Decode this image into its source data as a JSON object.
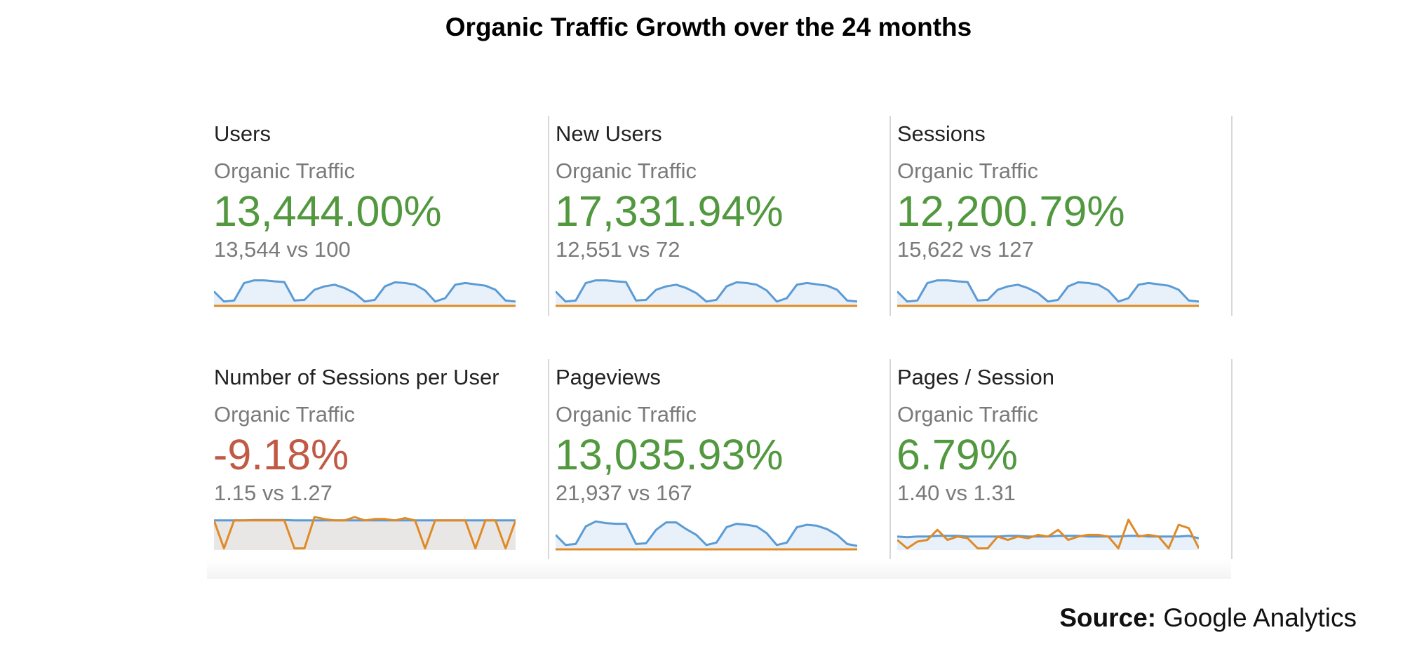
{
  "title": "Organic Traffic Growth over the 24 months",
  "source": {
    "label": "Source:",
    "text": "Google Analytics"
  },
  "colors": {
    "positive": "#52983f",
    "negative": "#c05a44",
    "current_series": "#5b9bd5",
    "current_fill": "#e8f1fa",
    "previous_series": "#e08a26",
    "negative_fill": "#e9e7e6"
  },
  "cards": [
    {
      "metric": "Users",
      "segment": "Organic Traffic",
      "change": "13,444.00%",
      "comparison": "13,544 vs 100",
      "trend": "positive"
    },
    {
      "metric": "New Users",
      "segment": "Organic Traffic",
      "change": "17,331.94%",
      "comparison": "12,551 vs 72",
      "trend": "positive"
    },
    {
      "metric": "Sessions",
      "segment": "Organic Traffic",
      "change": "12,200.79%",
      "comparison": "15,622 vs 127",
      "trend": "positive"
    },
    {
      "metric": "Number of Sessions per User",
      "segment": "Organic Traffic",
      "change": "-9.18%",
      "comparison": "1.15 vs 1.27",
      "trend": "negative"
    },
    {
      "metric": "Pageviews",
      "segment": "Organic Traffic",
      "change": "13,035.93%",
      "comparison": "21,937 vs 167",
      "trend": "positive"
    },
    {
      "metric": "Pages / Session",
      "segment": "Organic Traffic",
      "change": "6.79%",
      "comparison": "1.40 vs 1.31",
      "trend": "positive"
    }
  ],
  "chart_data": [
    {
      "type": "line",
      "metric": "Users",
      "ylim": [
        0,
        1.0
      ],
      "series": [
        {
          "values": [
            0.45,
            0.15,
            0.18,
            0.7,
            0.78,
            0.78,
            0.75,
            0.73,
            0.18,
            0.2,
            0.5,
            0.6,
            0.65,
            0.55,
            0.4,
            0.15,
            0.2,
            0.6,
            0.72,
            0.7,
            0.65,
            0.48,
            0.15,
            0.25,
            0.65,
            0.7,
            0.66,
            0.62,
            0.5,
            0.18,
            0.15
          ]
        },
        {
          "values": [
            0.02,
            0.02,
            0.02,
            0.02,
            0.02,
            0.02,
            0.02,
            0.02,
            0.02,
            0.02,
            0.02,
            0.02,
            0.02,
            0.02,
            0.02,
            0.02,
            0.02,
            0.02,
            0.02,
            0.02,
            0.02,
            0.02,
            0.02,
            0.02,
            0.02,
            0.02,
            0.02,
            0.02,
            0.02,
            0.02,
            0.02
          ]
        }
      ]
    },
    {
      "type": "line",
      "metric": "New Users",
      "ylim": [
        0,
        1.0
      ],
      "series": [
        {
          "values": [
            0.45,
            0.15,
            0.18,
            0.7,
            0.78,
            0.78,
            0.75,
            0.73,
            0.18,
            0.2,
            0.5,
            0.6,
            0.65,
            0.55,
            0.4,
            0.15,
            0.2,
            0.6,
            0.72,
            0.7,
            0.65,
            0.48,
            0.15,
            0.25,
            0.65,
            0.7,
            0.66,
            0.62,
            0.5,
            0.18,
            0.15
          ]
        },
        {
          "values": [
            0.02,
            0.02,
            0.02,
            0.02,
            0.02,
            0.02,
            0.02,
            0.02,
            0.02,
            0.02,
            0.02,
            0.02,
            0.02,
            0.02,
            0.02,
            0.02,
            0.02,
            0.02,
            0.02,
            0.02,
            0.02,
            0.02,
            0.02,
            0.02,
            0.02,
            0.02,
            0.02,
            0.02,
            0.02,
            0.02,
            0.02
          ]
        }
      ]
    },
    {
      "type": "line",
      "metric": "Sessions",
      "ylim": [
        0,
        1.0
      ],
      "series": [
        {
          "values": [
            0.45,
            0.15,
            0.18,
            0.7,
            0.78,
            0.78,
            0.75,
            0.73,
            0.18,
            0.2,
            0.5,
            0.6,
            0.65,
            0.55,
            0.4,
            0.15,
            0.2,
            0.6,
            0.72,
            0.7,
            0.65,
            0.48,
            0.15,
            0.25,
            0.65,
            0.7,
            0.66,
            0.62,
            0.5,
            0.18,
            0.15
          ]
        },
        {
          "values": [
            0.02,
            0.02,
            0.02,
            0.02,
            0.02,
            0.02,
            0.02,
            0.02,
            0.02,
            0.02,
            0.02,
            0.02,
            0.02,
            0.02,
            0.02,
            0.02,
            0.02,
            0.02,
            0.02,
            0.02,
            0.02,
            0.02,
            0.02,
            0.02,
            0.02,
            0.02,
            0.02,
            0.02,
            0.02,
            0.02,
            0.02
          ]
        }
      ]
    },
    {
      "type": "line",
      "metric": "Number of Sessions per User",
      "ylim": [
        0,
        1.0
      ],
      "series": [
        {
          "values": [
            0.88,
            0.88,
            0.88,
            0.88,
            0.89,
            0.89,
            0.89,
            0.89,
            0.88,
            0.88,
            0.88,
            0.88,
            0.88,
            0.88,
            0.88,
            0.88,
            0.88,
            0.88,
            0.88,
            0.88,
            0.88,
            0.88,
            0.88,
            0.88,
            0.88,
            0.88,
            0.88,
            0.88,
            0.88,
            0.88,
            0.88
          ]
        },
        {
          "values": [
            0.88,
            0.05,
            0.88,
            0.88,
            0.88,
            0.88,
            0.88,
            0.88,
            0.05,
            0.05,
            0.98,
            0.92,
            0.88,
            0.88,
            0.98,
            0.88,
            0.92,
            0.92,
            0.88,
            0.95,
            0.88,
            0.05,
            0.88,
            0.88,
            0.88,
            0.88,
            0.05,
            0.88,
            0.88,
            0.05,
            0.88
          ]
        }
      ]
    },
    {
      "type": "line",
      "metric": "Pageviews",
      "ylim": [
        0,
        1.0
      ],
      "series": [
        {
          "values": [
            0.45,
            0.15,
            0.18,
            0.7,
            0.85,
            0.8,
            0.78,
            0.78,
            0.18,
            0.2,
            0.6,
            0.82,
            0.82,
            0.62,
            0.45,
            0.15,
            0.22,
            0.68,
            0.78,
            0.75,
            0.7,
            0.5,
            0.15,
            0.22,
            0.68,
            0.75,
            0.72,
            0.62,
            0.45,
            0.18,
            0.12
          ]
        },
        {
          "values": [
            0.02,
            0.02,
            0.02,
            0.02,
            0.02,
            0.02,
            0.02,
            0.02,
            0.02,
            0.02,
            0.02,
            0.02,
            0.02,
            0.02,
            0.02,
            0.02,
            0.02,
            0.02,
            0.02,
            0.02,
            0.02,
            0.02,
            0.02,
            0.02,
            0.02,
            0.02,
            0.02,
            0.02,
            0.02,
            0.02,
            0.02
          ]
        }
      ]
    },
    {
      "type": "line",
      "metric": "Pages / Session",
      "ylim": [
        0,
        1.0
      ],
      "series": [
        {
          "values": [
            0.4,
            0.38,
            0.4,
            0.4,
            0.42,
            0.42,
            0.42,
            0.4,
            0.4,
            0.4,
            0.4,
            0.42,
            0.42,
            0.4,
            0.4,
            0.4,
            0.42,
            0.42,
            0.42,
            0.4,
            0.4,
            0.4,
            0.4,
            0.42,
            0.42,
            0.4,
            0.4,
            0.4,
            0.4,
            0.42,
            0.35
          ]
        },
        {
          "values": [
            0.3,
            0.05,
            0.25,
            0.3,
            0.6,
            0.3,
            0.4,
            0.35,
            0.05,
            0.05,
            0.4,
            0.3,
            0.4,
            0.35,
            0.45,
            0.4,
            0.6,
            0.3,
            0.4,
            0.45,
            0.45,
            0.4,
            0.05,
            0.9,
            0.4,
            0.45,
            0.4,
            0.05,
            0.75,
            0.65,
            0.05
          ]
        }
      ]
    }
  ]
}
